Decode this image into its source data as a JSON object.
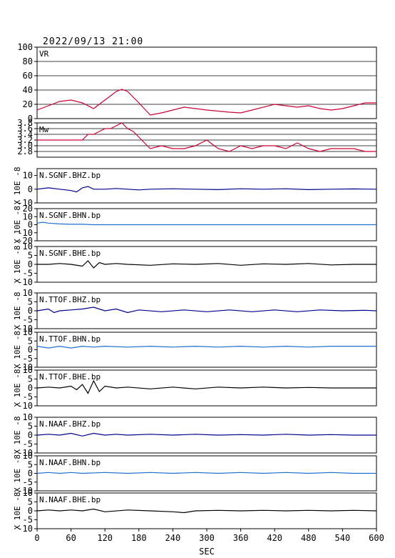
{
  "timestamp": "2022/09/13 21:00",
  "colors": {
    "axes": "#000000",
    "grid": "#000000",
    "vr_mw": "#cc0033",
    "dark_blue": "#00008b",
    "light_blue": "#1f6fcf",
    "black": "#000000"
  },
  "chart_data": [
    {
      "type": "line",
      "panel": "VR",
      "label": "VR",
      "ylim": [
        0,
        100
      ],
      "yticks": [
        0,
        20,
        40,
        60,
        80,
        100
      ],
      "grid": true,
      "color": "#cc0033",
      "x": [
        0,
        20,
        40,
        60,
        80,
        100,
        120,
        140,
        150,
        160,
        180,
        200,
        220,
        240,
        260,
        300,
        340,
        360,
        380,
        420,
        460,
        480,
        500,
        520,
        540,
        560,
        580,
        600
      ],
      "values": [
        12,
        18,
        24,
        26,
        22,
        14,
        26,
        38,
        41,
        38,
        22,
        5,
        8,
        12,
        16,
        12,
        9,
        8,
        12,
        20,
        16,
        18,
        14,
        12,
        14,
        18,
        22,
        22
      ]
    },
    {
      "type": "line",
      "panel": "Mw",
      "label": "Mw",
      "ylim": [
        2.6,
        3.8
      ],
      "yticks": [
        2.8,
        3.0,
        3.2,
        3.4,
        3.6,
        3.8
      ],
      "grid": true,
      "color": "#cc0033",
      "x": [
        0,
        20,
        40,
        60,
        80,
        90,
        100,
        110,
        120,
        130,
        140,
        150,
        160,
        170,
        180,
        190,
        200,
        220,
        240,
        260,
        280,
        300,
        320,
        340,
        360,
        380,
        400,
        420,
        440,
        460,
        480,
        500,
        520,
        540,
        560,
        580,
        600
      ],
      "values": [
        3.2,
        3.2,
        3.2,
        3.2,
        3.2,
        3.4,
        3.4,
        3.5,
        3.6,
        3.6,
        3.7,
        3.8,
        3.6,
        3.5,
        3.3,
        3.1,
        2.9,
        3.0,
        2.9,
        2.9,
        3.0,
        3.2,
        2.9,
        2.8,
        3.0,
        2.9,
        3.0,
        3.0,
        2.9,
        3.1,
        2.9,
        2.8,
        2.9,
        2.9,
        2.9,
        2.8,
        2.8
      ]
    },
    {
      "type": "line",
      "panel": "waveform",
      "label": "N.SGNF.BHZ.bp",
      "ylim": [
        -10,
        15
      ],
      "yticks": [
        -10,
        0,
        10
      ],
      "color": "#00008b",
      "x": [
        0,
        20,
        40,
        60,
        70,
        80,
        90,
        100,
        120,
        140,
        160,
        180,
        200,
        240,
        280,
        320,
        360,
        400,
        440,
        480,
        520,
        560,
        600
      ],
      "values": [
        0,
        1,
        0,
        -1,
        -2,
        1,
        2,
        0,
        0,
        0.5,
        0,
        -0.5,
        0,
        0.3,
        0,
        -0.3,
        0.3,
        0,
        0.3,
        -0.3,
        0,
        0.2,
        0
      ]
    },
    {
      "type": "line",
      "panel": "waveform",
      "label": "N.SGNF.BHN.bp",
      "ylim": [
        -20,
        20
      ],
      "yticks": [
        -20,
        -10,
        0,
        10,
        20
      ],
      "color": "#1f6fcf",
      "x": [
        0,
        10,
        20,
        40,
        60,
        80,
        100,
        140,
        200,
        300,
        400,
        500,
        600
      ],
      "values": [
        2,
        3,
        2,
        1,
        0.5,
        0.5,
        0,
        0,
        0,
        0,
        0,
        0,
        0
      ]
    },
    {
      "type": "line",
      "panel": "waveform",
      "label": "N.SGNF.BHE.bp",
      "ylim": [
        -10,
        10
      ],
      "yticks": [
        -10,
        -5,
        0,
        5,
        10
      ],
      "color": "#000000",
      "x": [
        0,
        20,
        40,
        60,
        80,
        90,
        100,
        110,
        120,
        140,
        160,
        200,
        240,
        280,
        320,
        360,
        400,
        440,
        480,
        520,
        560,
        600
      ],
      "values": [
        0,
        0,
        0.5,
        0,
        -1,
        2,
        -2,
        1,
        0,
        0.5,
        0,
        -0.5,
        0.3,
        0,
        0.5,
        -0.5,
        0.3,
        0,
        0.5,
        -0.3,
        0,
        0
      ]
    },
    {
      "type": "line",
      "panel": "waveform",
      "label": "N.TTOF.BHZ.bp",
      "ylim": [
        -10,
        10
      ],
      "yticks": [
        -10,
        -5,
        0,
        5,
        10
      ],
      "color": "#00008b",
      "x": [
        0,
        20,
        30,
        40,
        60,
        80,
        100,
        120,
        140,
        160,
        180,
        220,
        260,
        300,
        340,
        380,
        420,
        460,
        500,
        540,
        580,
        600
      ],
      "values": [
        0,
        1,
        -1,
        0,
        0.5,
        1,
        2,
        0,
        1,
        -1,
        0.5,
        -0.5,
        0.5,
        -0.5,
        0.5,
        -0.5,
        0.5,
        -0.5,
        0.5,
        0,
        0.3,
        0
      ]
    },
    {
      "type": "line",
      "panel": "waveform",
      "label": "N.TTOF.BHN.bp",
      "ylim": [
        -10,
        10
      ],
      "yticks": [
        -10,
        -5,
        0,
        5,
        10
      ],
      "color": "#1f6fcf",
      "x": [
        0,
        20,
        40,
        60,
        80,
        100,
        120,
        160,
        200,
        240,
        280,
        320,
        360,
        400,
        440,
        480,
        520,
        560,
        600
      ],
      "values": [
        2,
        1,
        2,
        1,
        2,
        1.5,
        2,
        1.5,
        2,
        1.5,
        2,
        1.5,
        2,
        1.5,
        2,
        1.5,
        2,
        2,
        2
      ]
    },
    {
      "type": "line",
      "panel": "waveform",
      "label": "N.TTOF.BHE.bp",
      "ylim": [
        -10,
        10
      ],
      "yticks": [
        -10,
        -5,
        0,
        5,
        10
      ],
      "color": "#000000",
      "x": [
        0,
        20,
        40,
        60,
        70,
        80,
        90,
        100,
        110,
        120,
        140,
        160,
        200,
        240,
        280,
        320,
        360,
        400,
        440,
        480,
        520,
        560,
        600
      ],
      "values": [
        0,
        0.5,
        0,
        1,
        -1,
        2,
        -3,
        4,
        -2,
        1,
        0,
        0.5,
        -0.5,
        0.5,
        -0.5,
        0.5,
        0,
        0.5,
        0,
        0.3,
        0,
        0,
        0
      ]
    },
    {
      "type": "line",
      "panel": "waveform",
      "label": "N.NAAF.BHZ.bp",
      "ylim": [
        -10,
        10
      ],
      "yticks": [
        -10,
        -5,
        0,
        5,
        10
      ],
      "color": "#00008b",
      "x": [
        0,
        20,
        40,
        60,
        80,
        100,
        120,
        140,
        160,
        200,
        240,
        280,
        320,
        360,
        400,
        440,
        480,
        520,
        560,
        600
      ],
      "values": [
        0,
        0.5,
        0,
        1,
        -0.5,
        1,
        0,
        0.5,
        0,
        0.5,
        0,
        0.5,
        0,
        0.3,
        0,
        0.5,
        0,
        0.3,
        0,
        0
      ]
    },
    {
      "type": "line",
      "panel": "waveform",
      "label": "N.NAAF.BHN.bp",
      "ylim": [
        -10,
        10
      ],
      "yticks": [
        -10,
        -5,
        0,
        5,
        10
      ],
      "color": "#1f6fcf",
      "x": [
        0,
        20,
        40,
        60,
        80,
        120,
        160,
        200,
        240,
        280,
        320,
        360,
        400,
        440,
        480,
        520,
        560,
        600
      ],
      "values": [
        0,
        0.5,
        0,
        0.5,
        0,
        0.5,
        0,
        0.5,
        0,
        0.5,
        0,
        0.5,
        0,
        0.5,
        0,
        0.5,
        0,
        0
      ]
    },
    {
      "type": "line",
      "panel": "waveform",
      "label": "N.NAAF.BHE.bp",
      "ylim": [
        -10,
        10
      ],
      "yticks": [
        -10,
        -5,
        0,
        5,
        10
      ],
      "color": "#000000",
      "x": [
        0,
        20,
        40,
        60,
        80,
        100,
        120,
        160,
        200,
        240,
        260,
        280,
        320,
        360,
        400,
        440,
        480,
        520,
        560,
        600
      ],
      "values": [
        0,
        0.5,
        0,
        0.5,
        0,
        1,
        -0.5,
        0.5,
        0,
        -0.5,
        -1,
        0,
        0.3,
        0,
        0.3,
        0,
        0.3,
        0,
        0.3,
        0
      ]
    }
  ],
  "x_axis": {
    "xlim": [
      0,
      600
    ],
    "ticks": [
      0,
      60,
      120,
      180,
      240,
      300,
      360,
      420,
      480,
      540,
      600
    ],
    "label": "SEC"
  },
  "y_axis_label_repeated": "X 10E -8"
}
